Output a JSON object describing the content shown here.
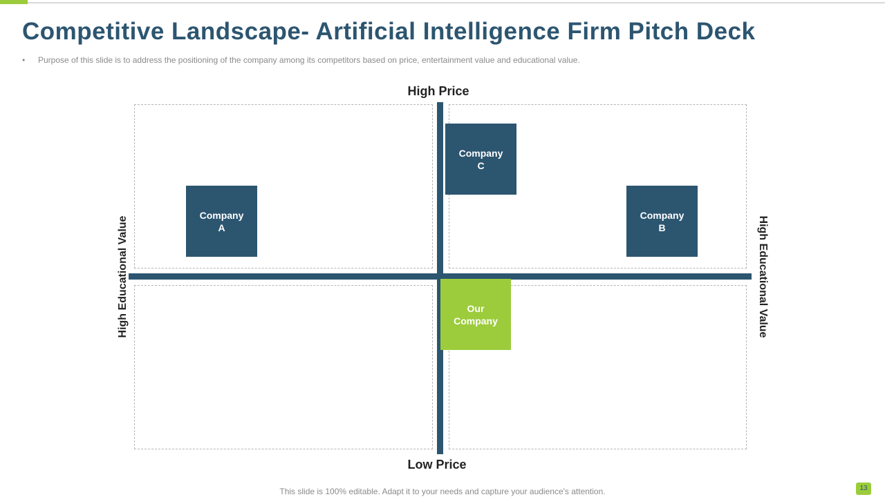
{
  "header": {
    "title": "Competitive Landscape- Artificial Intelligence Firm Pitch Deck",
    "subtitle": "Purpose of this slide is to address the positioning of the company among its competitors based on price, entertainment value  and educational value."
  },
  "axes": {
    "top": "High Price",
    "bottom": "Low Price",
    "left": "High Educational Value",
    "right": "High Educational Value"
  },
  "companies": [
    "Company A",
    "Company C",
    "Company B",
    "Our Company"
  ],
  "footer": {
    "text": "This slide is 100% editable. Adapt it to your needs and capture your audience's attention.",
    "page": "13"
  }
}
